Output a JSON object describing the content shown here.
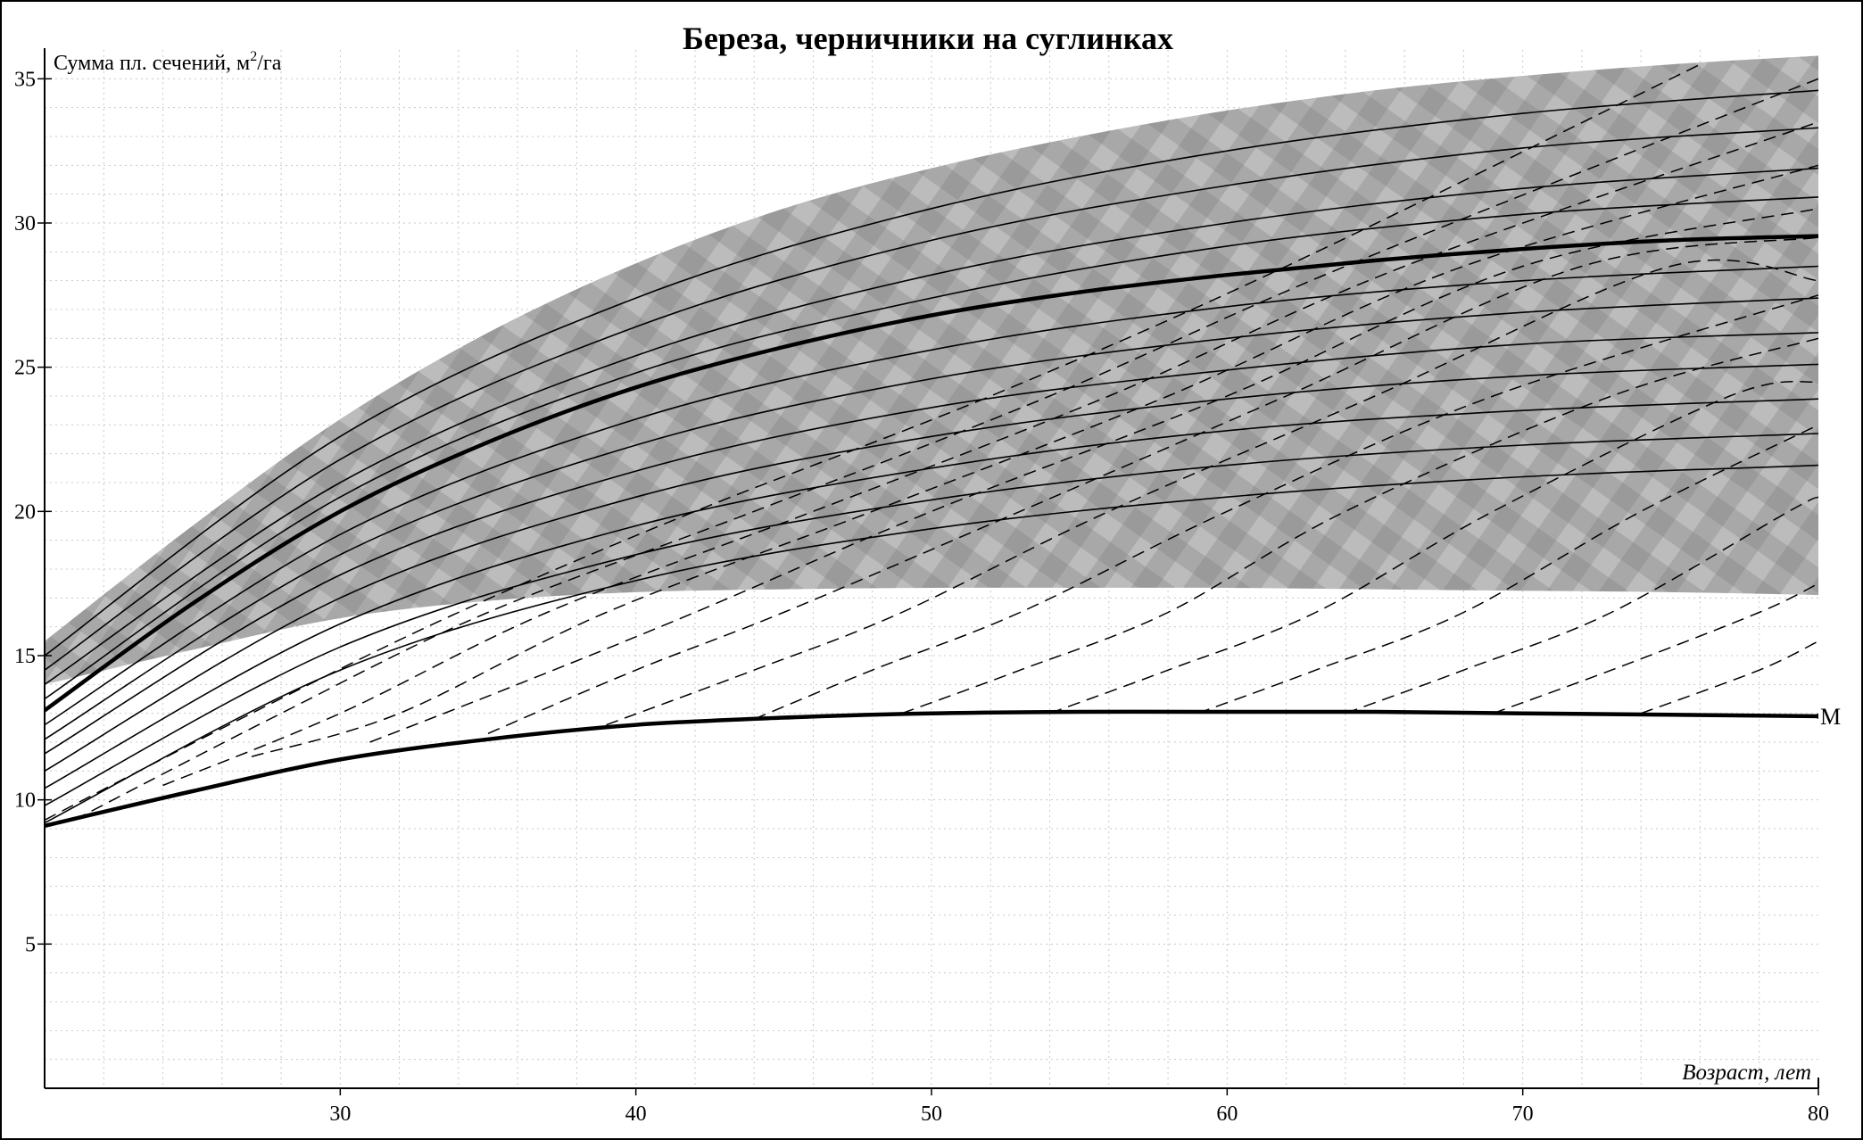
{
  "chart_data": {
    "type": "line",
    "title": "Береза, черничники на суглинках",
    "ylabel": "Сумма пл. сечений, м²/га",
    "ylabel_main": "Сумма пл. сечений, м",
    "ylabel_sup": "2",
    "ylabel_tail": "/га",
    "xlabel": "Возраст, лет",
    "xlim": [
      20,
      80
    ],
    "ylim": [
      0,
      36
    ],
    "x_ticks": [
      30,
      40,
      50,
      60,
      70,
      80
    ],
    "y_ticks": [
      5,
      10,
      15,
      20,
      25,
      30,
      35
    ],
    "grid": true,
    "colors": {
      "band_fill": "#a9a9a9",
      "line": "#000000",
      "grid": "#c8c8c8"
    },
    "shaded_band": {
      "x": [
        20,
        25,
        30,
        35,
        40,
        45,
        50,
        55,
        60,
        65,
        70,
        75,
        80
      ],
      "upper": [
        15.5,
        19.5,
        23.2,
        26.2,
        28.6,
        30.5,
        31.9,
        33.0,
        33.9,
        34.6,
        35.1,
        35.5,
        35.8
      ],
      "lower": [
        14.0,
        15.2,
        16.3,
        16.9,
        17.2,
        17.3,
        17.35,
        17.35,
        17.35,
        17.3,
        17.25,
        17.2,
        17.1
      ]
    },
    "main_curve": {
      "x": [
        20,
        25,
        30,
        35,
        40,
        45,
        50,
        55,
        60,
        65,
        70,
        75,
        80
      ],
      "y": [
        13.1,
        16.8,
        20.0,
        22.4,
        24.3,
        25.7,
        26.8,
        27.6,
        28.2,
        28.7,
        29.1,
        29.4,
        29.55
      ]
    },
    "min_curve": {
      "name": "М",
      "x": [
        20,
        25,
        30,
        35,
        40,
        45,
        50,
        55,
        60,
        65,
        70,
        75,
        80
      ],
      "y": [
        9.1,
        10.3,
        11.4,
        12.1,
        12.6,
        12.85,
        13.0,
        13.05,
        13.05,
        13.05,
        13.0,
        12.95,
        12.9
      ]
    },
    "solid_family": [
      {
        "x": [
          20,
          30,
          40,
          50,
          60,
          70,
          80
        ],
        "y": [
          15.0,
          22.6,
          27.4,
          30.5,
          32.5,
          33.8,
          34.6
        ]
      },
      {
        "x": [
          20,
          30,
          40,
          50,
          60,
          70,
          80
        ],
        "y": [
          14.5,
          21.8,
          26.4,
          29.4,
          31.3,
          32.6,
          33.3
        ]
      },
      {
        "x": [
          20,
          30,
          40,
          50,
          60,
          70,
          80
        ],
        "y": [
          14.0,
          21.0,
          25.4,
          28.2,
          30.0,
          31.2,
          31.9
        ]
      },
      {
        "x": [
          20,
          30,
          40,
          50,
          60,
          70,
          80
        ],
        "y": [
          13.5,
          20.5,
          24.8,
          27.4,
          29.2,
          30.3,
          30.9
        ]
      },
      {
        "x": [
          20,
          30,
          40,
          50,
          60,
          70,
          80
        ],
        "y": [
          12.6,
          19.2,
          23.2,
          25.6,
          27.1,
          28.0,
          28.5
        ]
      },
      {
        "x": [
          20,
          30,
          40,
          50,
          60,
          70,
          80
        ],
        "y": [
          12.1,
          18.5,
          22.3,
          24.6,
          26.0,
          26.9,
          27.4
        ]
      },
      {
        "x": [
          20,
          30,
          40,
          50,
          60,
          70,
          80
        ],
        "y": [
          11.6,
          17.8,
          21.4,
          23.6,
          24.9,
          25.8,
          26.2
        ]
      },
      {
        "x": [
          20,
          30,
          40,
          50,
          60,
          70,
          80
        ],
        "y": [
          11.0,
          17.0,
          20.5,
          22.6,
          23.9,
          24.7,
          25.1
        ]
      },
      {
        "x": [
          20,
          30,
          40,
          50,
          60,
          70,
          80
        ],
        "y": [
          10.4,
          16.1,
          19.5,
          21.5,
          22.8,
          23.5,
          23.9
        ]
      },
      {
        "x": [
          20,
          30,
          40,
          50,
          60,
          70,
          80
        ],
        "y": [
          9.8,
          15.3,
          18.5,
          20.4,
          21.6,
          22.3,
          22.7
        ]
      },
      {
        "x": [
          20,
          30,
          40,
          50,
          60,
          70,
          80
        ],
        "y": [
          9.2,
          14.5,
          17.6,
          19.4,
          20.5,
          21.2,
          21.6
        ]
      }
    ],
    "dashed_family": [
      {
        "x": [
          20,
          27,
          34,
          42,
          52,
          62,
          76
        ],
        "y": [
          9.3,
          13.0,
          16.5,
          20.0,
          24.0,
          28.5,
          35.5
        ]
      },
      {
        "x": [
          21,
          28,
          35,
          44,
          54,
          64,
          80
        ],
        "y": [
          9.3,
          13.0,
          16.5,
          20.0,
          24.0,
          28.5,
          35.0
        ]
      },
      {
        "x": [
          24,
          30,
          37,
          46,
          56,
          66,
          80
        ],
        "y": [
          10.5,
          13.0,
          16.5,
          20.0,
          24.0,
          28.5,
          33.5
        ]
      },
      {
        "x": [
          27,
          32,
          39,
          48,
          58,
          68,
          80
        ],
        "y": [
          11.5,
          13.0,
          16.5,
          20.0,
          24.0,
          28.5,
          32.0
        ]
      },
      {
        "x": [
          31,
          36,
          42,
          50,
          60,
          70,
          80
        ],
        "y": [
          12.0,
          14.0,
          16.5,
          20.0,
          24.0,
          28.5,
          30.5
        ]
      },
      {
        "x": [
          35,
          40,
          45,
          53,
          62,
          72,
          80
        ],
        "y": [
          12.3,
          14.5,
          16.5,
          20.0,
          24.0,
          28.5,
          29.5
        ]
      },
      {
        "x": [
          39,
          44,
          49,
          56,
          65,
          75,
          80
        ],
        "y": [
          12.6,
          14.5,
          16.5,
          20.0,
          24.0,
          28.5,
          28.0
        ]
      },
      {
        "x": [
          44,
          48,
          53,
          60,
          69,
          80
        ],
        "y": [
          12.8,
          14.5,
          16.5,
          20.0,
          24.0,
          27.5
        ]
      },
      {
        "x": [
          49,
          53,
          58,
          64,
          73,
          80
        ],
        "y": [
          13.0,
          14.5,
          16.5,
          20.0,
          24.0,
          26.0
        ]
      },
      {
        "x": [
          54,
          58,
          63,
          69,
          77,
          80
        ],
        "y": [
          13.0,
          14.5,
          16.5,
          20.0,
          24.0,
          24.5
        ]
      },
      {
        "x": [
          59,
          63,
          68,
          74,
          80
        ],
        "y": [
          13.0,
          14.5,
          16.5,
          20.0,
          23.0
        ]
      },
      {
        "x": [
          64,
          68,
          73,
          79,
          80
        ],
        "y": [
          13.0,
          14.5,
          16.5,
          20.0,
          20.5
        ]
      },
      {
        "x": [
          69,
          73,
          78,
          80
        ],
        "y": [
          13.0,
          14.5,
          16.5,
          17.5
        ]
      },
      {
        "x": [
          74,
          78,
          80
        ],
        "y": [
          13.0,
          14.5,
          15.5
        ]
      }
    ]
  }
}
